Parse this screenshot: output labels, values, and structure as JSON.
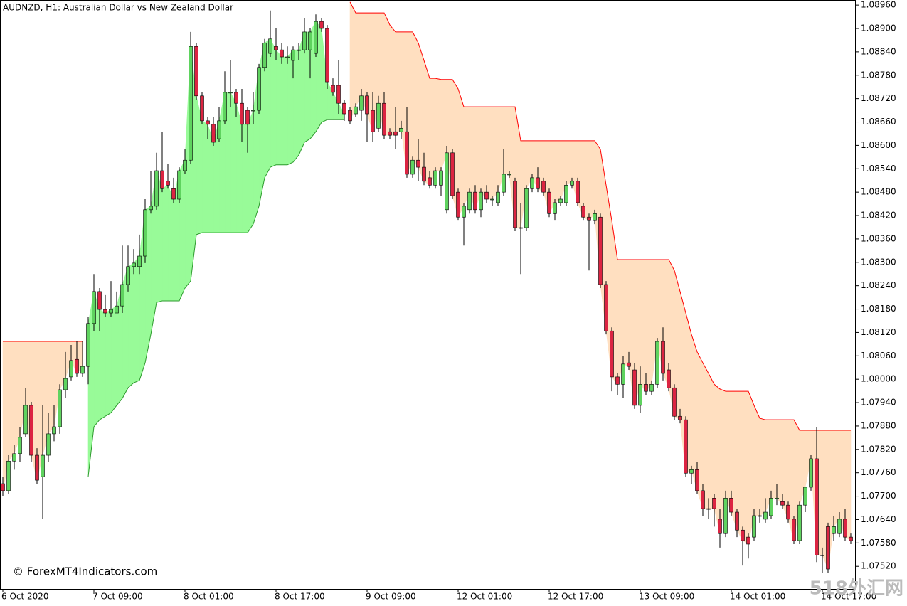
{
  "chart_data": {
    "type": "candlestick",
    "title": "AUDNZD, H1:  Australian Dollar vs New Zealand Dollar",
    "watermark": "© ForexMT4Indicators.com",
    "corner_mark": "518外汇网",
    "up_color": "#5fd35f",
    "down_color": "#dc2442",
    "stop_up_color": "#2e9a2e",
    "stop_down_color": "#ff0000",
    "fill_up_color": "#98fb98",
    "fill_down_color": "#ffdfc0",
    "ylim": [
      1.07462,
      1.08973
    ],
    "yticks": [
      {
        "value": 1.0896,
        "label": "1.08960"
      },
      {
        "value": 1.089,
        "label": "1.08900"
      },
      {
        "value": 1.0884,
        "label": "1.08840"
      },
      {
        "value": 1.0878,
        "label": "1.08780"
      },
      {
        "value": 1.0872,
        "label": "1.08720"
      },
      {
        "value": 1.0866,
        "label": "1.08660"
      },
      {
        "value": 1.086,
        "label": "1.08600"
      },
      {
        "value": 1.0854,
        "label": "1.08540"
      },
      {
        "value": 1.0848,
        "label": "1.08480"
      },
      {
        "value": 1.0842,
        "label": "1.08420"
      },
      {
        "value": 1.0836,
        "label": "1.08360"
      },
      {
        "value": 1.083,
        "label": "1.08300"
      },
      {
        "value": 1.0824,
        "label": "1.08240"
      },
      {
        "value": 1.0818,
        "label": "1.08180"
      },
      {
        "value": 1.0812,
        "label": "1.08120"
      },
      {
        "value": 1.0806,
        "label": "1.08060"
      },
      {
        "value": 1.08,
        "label": "1.08000"
      },
      {
        "value": 1.0794,
        "label": "1.07940"
      },
      {
        "value": 1.0788,
        "label": "1.07880"
      },
      {
        "value": 1.0782,
        "label": "1.07820"
      },
      {
        "value": 1.0776,
        "label": "1.07760"
      },
      {
        "value": 1.077,
        "label": "1.07700"
      },
      {
        "value": 1.0764,
        "label": "1.07640"
      },
      {
        "value": 1.0758,
        "label": "1.07580"
      },
      {
        "value": 1.0752,
        "label": "1.07520"
      }
    ],
    "categories": [
      "6 Oct 2020",
      null,
      null,
      null,
      null,
      null,
      null,
      null,
      null,
      null,
      null,
      null,
      null,
      null,
      null,
      null,
      "7 Oct 09:00",
      null,
      null,
      null,
      null,
      null,
      null,
      null,
      null,
      null,
      null,
      null,
      null,
      null,
      null,
      null,
      "8 Oct 01:00",
      null,
      null,
      null,
      null,
      null,
      null,
      null,
      null,
      null,
      null,
      null,
      null,
      null,
      null,
      null,
      "8 Oct 17:00",
      null,
      null,
      null,
      null,
      null,
      null,
      null,
      null,
      null,
      null,
      null,
      null,
      null,
      null,
      null,
      "9 Oct 09:00",
      null,
      null,
      null,
      null,
      null,
      null,
      null,
      null,
      null,
      null,
      null,
      null,
      null,
      null,
      null,
      "12 Oct 01:00",
      null,
      null,
      null,
      null,
      null,
      null,
      null,
      null,
      null,
      null,
      null,
      null,
      null,
      null,
      null,
      "12 Oct 17:00",
      null,
      null,
      null,
      null,
      null,
      null,
      null,
      null,
      null,
      null,
      null,
      null,
      null,
      null,
      null,
      "13 Oct 09:00",
      null,
      null,
      null,
      null,
      null,
      null,
      null,
      null,
      null,
      null,
      null,
      null,
      null,
      null,
      null,
      "14 Oct 01:00",
      null,
      null,
      null,
      null,
      null,
      null,
      null,
      null,
      null,
      null,
      null,
      null,
      null,
      null,
      null,
      "14 Oct 17:00",
      null,
      null,
      null,
      null,
      null
    ],
    "candles": [
      [
        1.07732,
        1.0775,
        1.07701,
        1.07714
      ],
      [
        1.07714,
        1.07805,
        1.07705,
        1.0779
      ],
      [
        1.0779,
        1.07832,
        1.07768,
        1.07809
      ],
      [
        1.07809,
        1.07878,
        1.07787,
        1.07851
      ],
      [
        1.0786,
        1.07978,
        1.07851,
        1.07933
      ],
      [
        1.07933,
        1.07942,
        1.07787,
        1.07805
      ],
      [
        1.07805,
        1.07823,
        1.07732,
        1.07741
      ],
      [
        1.0775,
        1.07933,
        1.07641,
        1.07805
      ],
      [
        1.07805,
        1.07914,
        1.07787,
        1.0786
      ],
      [
        1.0786,
        1.07933,
        1.07841,
        1.07878
      ],
      [
        1.07878,
        1.07987,
        1.0786,
        1.07973
      ],
      [
        1.07973,
        1.0807,
        1.07951,
        1.08002
      ],
      [
        1.08006,
        1.08088,
        1.07997,
        1.08048
      ],
      [
        1.08051,
        1.08097,
        1.08006,
        1.08015
      ],
      [
        1.08015,
        1.08097,
        1.08006,
        1.08033
      ],
      [
        1.08033,
        1.08161,
        1.07987,
        1.08143
      ],
      [
        1.08143,
        1.0827,
        1.08124,
        1.08225
      ],
      [
        1.08225,
        1.08234,
        1.08124,
        1.08179
      ],
      [
        1.08179,
        1.08216,
        1.08161,
        1.0817
      ],
      [
        1.0817,
        1.08252,
        1.08161,
        1.08179
      ],
      [
        1.0817,
        1.08225,
        1.0817,
        1.08188
      ],
      [
        1.08188,
        1.08343,
        1.0817,
        1.08243
      ],
      [
        1.08243,
        1.08343,
        1.08225,
        1.08289
      ],
      [
        1.08289,
        1.08334,
        1.0827,
        1.08298
      ],
      [
        1.08289,
        1.08371,
        1.0827,
        1.08316
      ],
      [
        1.08316,
        1.08462,
        1.08298,
        1.08435
      ],
      [
        1.08435,
        1.08535,
        1.08425,
        1.08444
      ],
      [
        1.08444,
        1.08581,
        1.08435,
        1.08535
      ],
      [
        1.08535,
        1.08635,
        1.0848,
        1.08489
      ],
      [
        1.08508,
        1.08553,
        1.08489,
        1.08498
      ],
      [
        1.08489,
        1.08517,
        1.08453,
        1.08462
      ],
      [
        1.08462,
        1.08544,
        1.08453,
        1.08535
      ],
      [
        1.08535,
        1.0859,
        1.08526,
        1.08562
      ],
      [
        1.08562,
        1.08891,
        1.08553,
        1.08854
      ],
      [
        1.08854,
        1.08863,
        1.08717,
        1.08727
      ],
      [
        1.08727,
        1.08736,
        1.08654,
        1.08663
      ],
      [
        1.08663,
        1.08672,
        1.08617,
        1.08654
      ],
      [
        1.08654,
        1.08672,
        1.08599,
        1.08608
      ],
      [
        1.08617,
        1.08699,
        1.08608,
        1.08663
      ],
      [
        1.08663,
        1.0879,
        1.08654,
        1.08736
      ],
      [
        1.08736,
        1.08818,
        1.08699,
        1.08736
      ],
      [
        1.08736,
        1.08745,
        1.08672,
        1.08708
      ],
      [
        1.08708,
        1.08745,
        1.08608,
        1.08654
      ],
      [
        1.0869,
        1.08699,
        1.08581,
        1.08654
      ],
      [
        1.0869,
        1.08736,
        1.08654,
        1.0869
      ],
      [
        1.0869,
        1.08809,
        1.08681,
        1.088
      ],
      [
        1.088,
        1.08873,
        1.0879,
        1.08863
      ],
      [
        1.08836,
        1.08946,
        1.08827,
        1.08873
      ],
      [
        1.08854,
        1.089,
        1.08818,
        1.08845
      ],
      [
        1.08845,
        1.08863,
        1.08809,
        1.08827
      ],
      [
        1.08827,
        1.08854,
        1.08809,
        1.08827
      ],
      [
        1.08818,
        1.08854,
        1.08772,
        1.08845
      ],
      [
        1.08845,
        1.08863,
        1.08818,
        1.08845
      ],
      [
        1.08845,
        1.08927,
        1.08836,
        1.08891
      ],
      [
        1.08845,
        1.089,
        1.08772,
        1.08891
      ],
      [
        1.08836,
        1.08936,
        1.08827,
        1.08918
      ],
      [
        1.08918,
        1.08927,
        1.08891,
        1.089
      ],
      [
        1.089,
        1.08909,
        1.08745,
        1.08763
      ],
      [
        1.08754,
        1.08772,
        1.08727,
        1.08736
      ],
      [
        1.08754,
        1.08818,
        1.08681,
        1.08708
      ],
      [
        1.08708,
        1.08717,
        1.08663,
        1.08681
      ],
      [
        1.0869,
        1.08699,
        1.08654,
        1.08663
      ],
      [
        1.08681,
        1.08708,
        1.08672,
        1.08699
      ],
      [
        1.0869,
        1.08745,
        1.08663,
        1.08727
      ],
      [
        1.08727,
        1.08736,
        1.08608,
        1.08681
      ],
      [
        1.0869,
        1.08736,
        1.08608,
        1.08635
      ],
      [
        1.08644,
        1.08727,
        1.08635,
        1.08708
      ],
      [
        1.08708,
        1.08736,
        1.08617,
        1.08626
      ],
      [
        1.08635,
        1.08644,
        1.08617,
        1.08626
      ],
      [
        1.08635,
        1.08699,
        1.0859,
        1.08626
      ],
      [
        1.08635,
        1.08663,
        1.08617,
        1.08644
      ],
      [
        1.08635,
        1.08699,
        1.08517,
        1.08526
      ],
      [
        1.08526,
        1.08571,
        1.08517,
        1.08562
      ],
      [
        1.08562,
        1.08617,
        1.08508,
        1.08544
      ],
      [
        1.08544,
        1.08581,
        1.08498,
        1.08508
      ],
      [
        1.08517,
        1.08535,
        1.08489,
        1.08498
      ],
      [
        1.08498,
        1.08544,
        1.08489,
        1.08535
      ],
      [
        1.08498,
        1.08544,
        1.08471,
        1.08535
      ],
      [
        1.08435,
        1.08599,
        1.08425,
        1.08581
      ],
      [
        1.08581,
        1.0859,
        1.08462,
        1.08471
      ],
      [
        1.0848,
        1.08489,
        1.08407,
        1.08416
      ],
      [
        1.08416,
        1.08453,
        1.08343,
        1.08444
      ],
      [
        1.08435,
        1.08489,
        1.08425,
        1.0848
      ],
      [
        1.0848,
        1.08498,
        1.08425,
        1.08435
      ],
      [
        1.08435,
        1.08489,
        1.08416,
        1.0848
      ],
      [
        1.0848,
        1.08498,
        1.08453,
        1.08462
      ],
      [
        1.08462,
        1.08471,
        1.08444,
        1.08462
      ],
      [
        1.08453,
        1.08498,
        1.08444,
        1.0848
      ],
      [
        1.0848,
        1.0859,
        1.08471,
        1.08526
      ],
      [
        1.08526,
        1.08535,
        1.08517,
        1.08526
      ],
      [
        1.08508,
        1.08517,
        1.0838,
        1.08389
      ],
      [
        1.08389,
        1.08453,
        1.0827,
        1.08389
      ],
      [
        1.08389,
        1.08498,
        1.0838,
        1.08489
      ],
      [
        1.08489,
        1.08526,
        1.0848,
        1.08517
      ],
      [
        1.08517,
        1.08544,
        1.0848,
        1.08489
      ],
      [
        1.08508,
        1.08517,
        1.08471,
        1.0848
      ],
      [
        1.0848,
        1.08489,
        1.08416,
        1.08425
      ],
      [
        1.08425,
        1.08462,
        1.08407,
        1.08453
      ],
      [
        1.08453,
        1.08471,
        1.08444,
        1.08462
      ],
      [
        1.08453,
        1.08508,
        1.08444,
        1.08498
      ],
      [
        1.08498,
        1.08517,
        1.08489,
        1.08508
      ],
      [
        1.08508,
        1.08517,
        1.08444,
        1.08453
      ],
      [
        1.08444,
        1.08453,
        1.08407,
        1.08416
      ],
      [
        1.08416,
        1.08425,
        1.08279,
        1.08407
      ],
      [
        1.08407,
        1.08435,
        1.08398,
        1.08425
      ],
      [
        1.08416,
        1.08425,
        1.08234,
        1.08243
      ],
      [
        1.08243,
        1.08252,
        1.08115,
        1.08124
      ],
      [
        1.08124,
        1.08133,
        1.07969,
        1.08006
      ],
      [
        1.08006,
        1.08015,
        1.0796,
        1.07987
      ],
      [
        1.07987,
        1.0806,
        1.07951,
        1.08039
      ],
      [
        1.08042,
        1.0807,
        1.08024,
        1.08033
      ],
      [
        1.08024,
        1.08042,
        1.07924,
        1.07933
      ],
      [
        1.07933,
        1.08033,
        1.07914,
        1.07987
      ],
      [
        1.07987,
        1.08015,
        1.0796,
        1.07969
      ],
      [
        1.07969,
        1.07997,
        1.0796,
        1.07987
      ],
      [
        1.07987,
        1.08106,
        1.07978,
        1.08097
      ],
      [
        1.08097,
        1.08133,
        1.07997,
        1.08015
      ],
      [
        1.08024,
        1.08042,
        1.07969,
        1.07978
      ],
      [
        1.07978,
        1.07987,
        1.07896,
        1.07905
      ],
      [
        1.07905,
        1.07924,
        1.07887,
        1.07896
      ],
      [
        1.07896,
        1.07905,
        1.0775,
        1.07759
      ],
      [
        1.07759,
        1.07778,
        1.07732,
        1.07768
      ],
      [
        1.07768,
        1.07787,
        1.07705,
        1.07714
      ],
      [
        1.07714,
        1.07732,
        1.0765,
        1.07668
      ],
      [
        1.07668,
        1.07695,
        1.07641,
        1.07668
      ],
      [
        1.07695,
        1.07705,
        1.07622,
        1.07668
      ],
      [
        1.07641,
        1.07668,
        1.07568,
        1.07604
      ],
      [
        1.07604,
        1.07714,
        1.07595,
        1.07695
      ],
      [
        1.07695,
        1.07714,
        1.0765,
        1.07659
      ],
      [
        1.07659,
        1.07668,
        1.07595,
        1.07613
      ],
      [
        1.07613,
        1.07622,
        1.07522,
        1.07586
      ],
      [
        1.07595,
        1.07604,
        1.0754,
        1.07577
      ],
      [
        1.07595,
        1.07668,
        1.07586,
        1.0765
      ],
      [
        1.0765,
        1.07668,
        1.07632,
        1.0765
      ],
      [
        1.07641,
        1.07695,
        1.07632,
        1.07659
      ],
      [
        1.0765,
        1.07714,
        1.07641,
        1.07695
      ],
      [
        1.07695,
        1.07732,
        1.07677,
        1.07695
      ],
      [
        1.07686,
        1.07705,
        1.07668,
        1.07677
      ],
      [
        1.07677,
        1.07686,
        1.07632,
        1.07641
      ],
      [
        1.07641,
        1.0765,
        1.07577,
        1.07586
      ],
      [
        1.07586,
        1.07686,
        1.07577,
        1.07677
      ],
      [
        1.07677,
        1.07723,
        1.07659,
        1.07723
      ],
      [
        1.07723,
        1.07805,
        1.07714,
        1.07796
      ],
      [
        1.07796,
        1.07878,
        1.07531,
        1.07549
      ],
      [
        1.07549,
        1.07568,
        1.07504,
        1.07549
      ],
      [
        1.07622,
        1.07632,
        1.07504,
        1.07513
      ],
      [
        1.07604,
        1.0765,
        1.07586,
        1.07622
      ],
      [
        1.07604,
        1.07659,
        1.07595,
        1.07641
      ],
      [
        1.07641,
        1.07668,
        1.07586,
        1.07595
      ],
      [
        1.07595,
        1.07604,
        1.07577,
        1.07586
      ]
    ],
    "stop": [
      1.08097,
      1.08097,
      1.08097,
      1.08097,
      1.08097,
      1.08097,
      1.08097,
      1.08097,
      1.08097,
      1.08097,
      1.08097,
      1.08097,
      1.08097,
      1.08097,
      1.08097,
      1.0775,
      1.07878,
      1.07896,
      1.07905,
      1.07914,
      1.07933,
      1.07951,
      1.07978,
      1.07991,
      1.07997,
      1.08042,
      1.08115,
      1.08197,
      1.08201,
      1.08201,
      1.08201,
      1.08201,
      1.08234,
      1.08252,
      1.08371,
      1.08376,
      1.08376,
      1.08376,
      1.08376,
      1.08376,
      1.08376,
      1.08376,
      1.08376,
      1.08376,
      1.08398,
      1.08444,
      1.08517,
      1.08544,
      1.0855,
      1.0855,
      1.0855,
      1.08557,
      1.08575,
      1.08608,
      1.08617,
      1.08635,
      1.08659,
      1.08666,
      1.08666,
      1.08666,
      1.08666,
      1.08968,
      1.0894,
      1.0894,
      1.0894,
      1.0894,
      1.0894,
      1.0894,
      1.08909,
      1.08891,
      1.08891,
      1.08891,
      1.08891,
      1.08863,
      1.08818,
      1.08772,
      1.08772,
      1.08769,
      1.08769,
      1.08769,
      1.08745,
      1.08699,
      1.08699,
      1.08699,
      1.08699,
      1.08699,
      1.08699,
      1.08699,
      1.08699,
      1.08699,
      1.08699,
      1.08612,
      1.08612,
      1.08612,
      1.08612,
      1.08612,
      1.08612,
      1.08612,
      1.08612,
      1.08612,
      1.08612,
      1.08612,
      1.08612,
      1.08612,
      1.08612,
      1.0859,
      1.08498,
      1.08407,
      1.08307,
      1.08307,
      1.08307,
      1.08307,
      1.08307,
      1.08307,
      1.08307,
      1.08307,
      1.08307,
      1.08307,
      1.08279,
      1.08225,
      1.0817,
      1.08115,
      1.0807,
      1.08042,
      1.08015,
      1.07987,
      1.07975,
      1.07969,
      1.07969,
      1.07969,
      1.07969,
      1.07969,
      1.07933,
      1.079,
      1.07896,
      1.07896,
      1.07896,
      1.07896,
      1.07896,
      1.07896,
      1.07869,
      1.07869,
      1.07869,
      1.07869,
      1.07869,
      1.07869,
      1.07869,
      1.07869,
      1.07869,
      1.07869
    ]
  }
}
